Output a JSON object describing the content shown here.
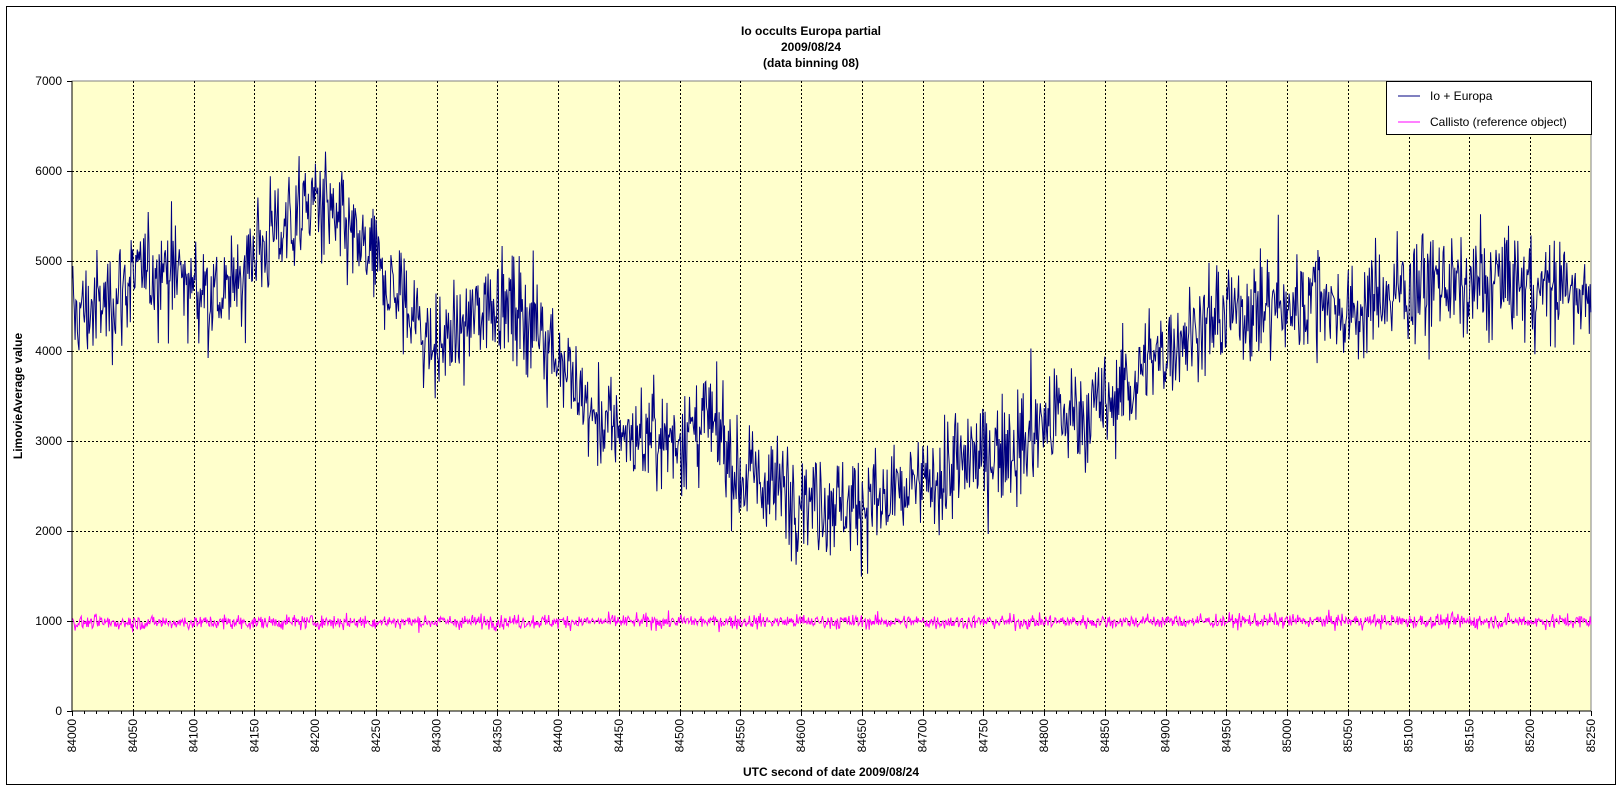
{
  "chart_data": {
    "type": "line",
    "title": [
      "Io occults Europa partial",
      "2009/08/24",
      "(data binning 08)"
    ],
    "xlabel": "UTC second  of date 2009/08/24",
    "ylabel": "LimovieAverage value",
    "xlim": [
      84000,
      85250
    ],
    "ylim": [
      0,
      7000
    ],
    "x_ticks": [
      84000,
      84050,
      84100,
      84150,
      84200,
      84250,
      84300,
      84350,
      84400,
      84450,
      84500,
      84550,
      84600,
      84650,
      84700,
      84750,
      84800,
      84850,
      84900,
      84950,
      85000,
      85050,
      85100,
      85150,
      85200,
      85250
    ],
    "y_ticks": [
      0,
      1000,
      2000,
      3000,
      4000,
      5000,
      6000,
      7000
    ],
    "grid": true,
    "legend_position": "top-right",
    "plot_background": "#FFFFCC",
    "series": [
      {
        "name": "Io + Europa",
        "color": "#000080",
        "x": [
          84000,
          84025,
          84050,
          84075,
          84100,
          84125,
          84150,
          84175,
          84200,
          84225,
          84250,
          84275,
          84300,
          84325,
          84350,
          84375,
          84400,
          84425,
          84450,
          84475,
          84500,
          84525,
          84550,
          84575,
          84600,
          84625,
          84650,
          84675,
          84700,
          84725,
          84750,
          84775,
          84800,
          84825,
          84850,
          84875,
          84900,
          84925,
          84950,
          84975,
          85000,
          85025,
          85050,
          85075,
          85100,
          85125,
          85150,
          85175,
          85200,
          85225,
          85250
        ],
        "y": [
          4400,
          4500,
          4800,
          4900,
          4700,
          4600,
          5100,
          5400,
          5700,
          5300,
          4900,
          4500,
          4000,
          4300,
          4600,
          4400,
          4000,
          3300,
          3100,
          3000,
          3050,
          3200,
          2600,
          2500,
          2400,
          2350,
          2300,
          2350,
          2500,
          2700,
          2850,
          2950,
          3200,
          3300,
          3350,
          3700,
          4000,
          4300,
          4400,
          4500,
          4450,
          4650,
          4400,
          4600,
          4700,
          4800,
          4650,
          4800,
          4700,
          4650,
          4700
        ]
      },
      {
        "name": "Callisto (reference object)",
        "color": "#FF00FF",
        "x": [
          84000,
          84250,
          84500,
          84750,
          85000,
          85250
        ],
        "y": [
          980,
          990,
          995,
          990,
          1000,
          995
        ]
      }
    ]
  }
}
